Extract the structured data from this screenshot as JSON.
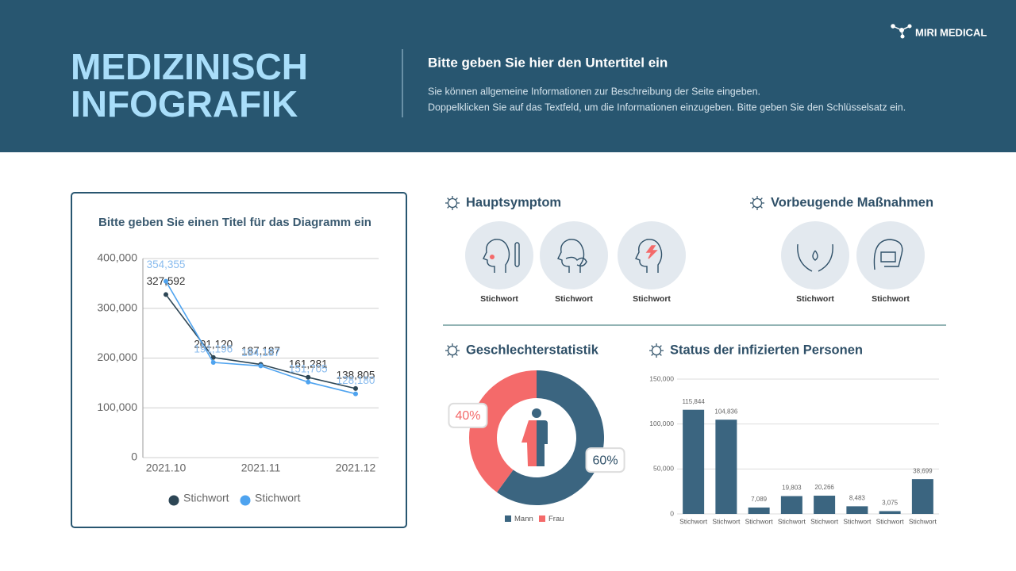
{
  "header": {
    "brand": "MIRI MEDICAL",
    "title": [
      "MEDIZINISCH",
      "INFOGRAFIK"
    ],
    "subtitle": "Bitte geben Sie hier den Untertitel ein",
    "description": [
      "Sie können allgemeine Informationen zur Beschreibung der Seite eingeben.",
      "Doppelklicken Sie auf das Textfeld, um die Informationen einzugeben. Bitte geben Sie den Schlüsselsatz ein."
    ]
  },
  "sections": {
    "symptoms": {
      "title": "Hauptsymptom",
      "items": [
        "Stichwort",
        "Stichwort",
        "Stichwort"
      ]
    },
    "prevention": {
      "title": "Vorbeugende Maßnahmen",
      "items": [
        "Stichwort",
        "Stichwort"
      ]
    },
    "gender": {
      "title": "Geschlechterstatistik"
    },
    "infected": {
      "title": "Status der infizierten Personen"
    }
  },
  "chart_data": [
    {
      "type": "line",
      "title": "Bitte geben Sie einen Titel für das Diagramm ein",
      "categories": [
        "2021.10",
        null,
        "2021.11",
        null,
        "2021.12"
      ],
      "series": [
        {
          "name": "Stichwort",
          "color": "#2d4655",
          "values": [
            327592,
            201120,
            187187,
            161281,
            138805
          ],
          "value_labels": [
            "327,592",
            "201,120",
            "187,187",
            "161,281",
            "138,805"
          ]
        },
        {
          "name": "Stichwort",
          "color": "#4ea3ef",
          "values": [
            354355,
            191196,
            184187,
            151705,
            128180
          ],
          "value_labels": [
            "354,355",
            "191,196",
            "184,187",
            "151,705",
            "128,180"
          ]
        }
      ],
      "ylim": [
        0,
        400000
      ],
      "yticks": [
        0,
        {
          "value": 100000,
          "label": "100,000"
        },
        {
          "value": 200000,
          "label": "200,000"
        },
        {
          "value": 300000,
          "label": "300,000"
        },
        {
          "value": 400000,
          "label": "400,000"
        }
      ],
      "grid": true,
      "legend": "bottom"
    },
    {
      "type": "donut",
      "categories": [
        "Mann",
        "Frau"
      ],
      "values": [
        60,
        40
      ],
      "value_labels": [
        "60%",
        "40%"
      ],
      "colors": [
        "#3b6580",
        "#f46a6a"
      ],
      "legend": "bottom"
    },
    {
      "type": "bar",
      "categories": [
        "Stichwort",
        "Stichwort",
        "Stichwort",
        "Stichwort",
        "Stichwort",
        "Stichwort",
        "Stichwort",
        "Stichwort"
      ],
      "values": [
        115844,
        104836,
        7089,
        19803,
        20266,
        8483,
        3075,
        38699
      ],
      "value_labels": [
        "115,844",
        "104,836",
        "7,089",
        "19,803",
        "20,266",
        "8,483",
        "3,075",
        "38,699"
      ],
      "color": "#3b6580",
      "ylim": [
        0,
        150000
      ],
      "yticks": [
        0,
        {
          "value": 50000,
          "label": "50,000"
        },
        {
          "value": 100000,
          "label": "100,000"
        },
        {
          "value": 150000,
          "label": "150,000"
        }
      ],
      "grid": true
    }
  ]
}
